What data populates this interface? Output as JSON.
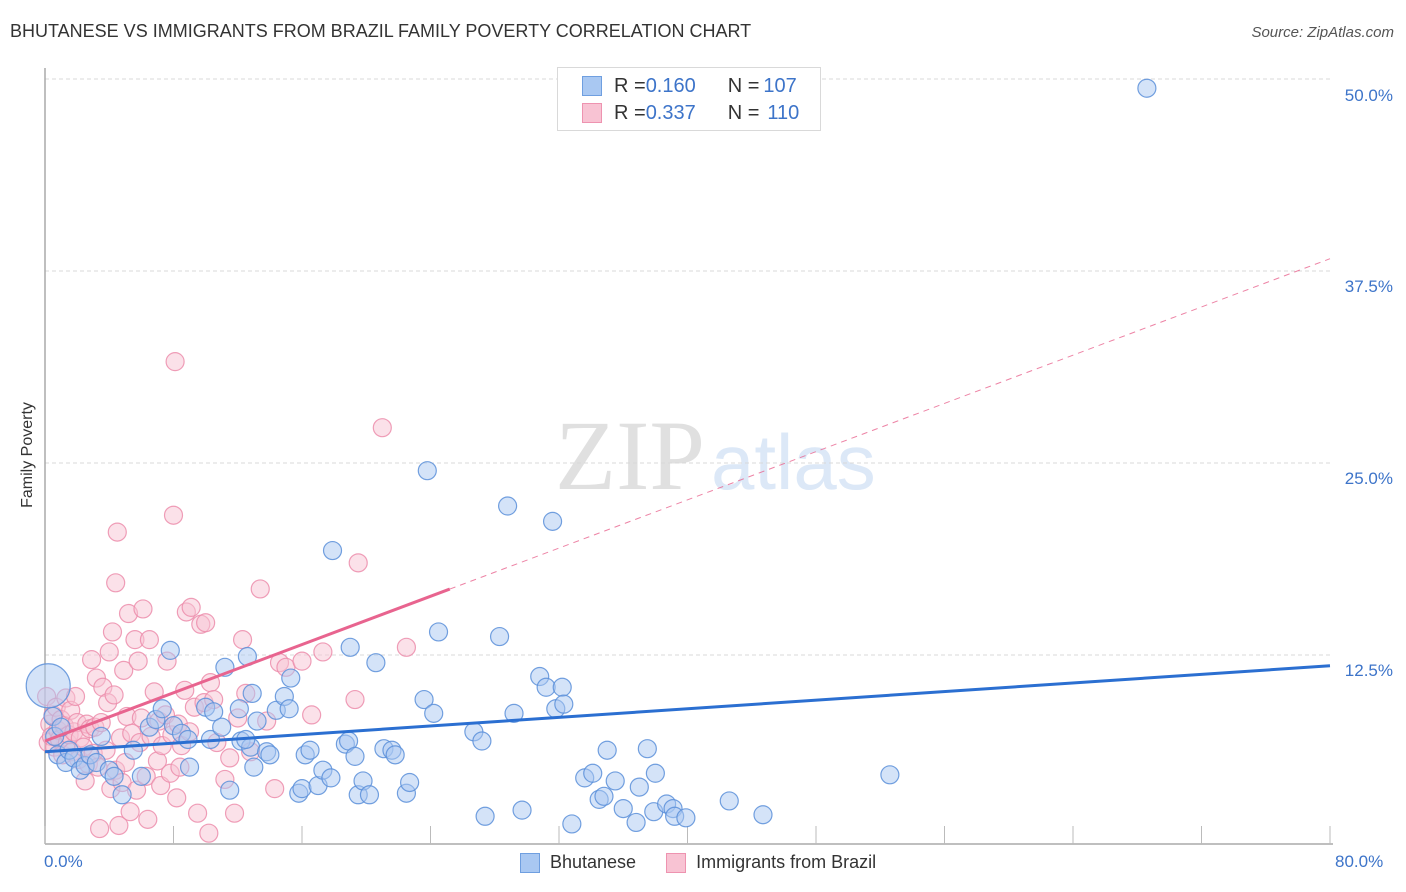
{
  "header": {
    "title": "BHUTANESE VS IMMIGRANTS FROM BRAZIL FAMILY POVERTY CORRELATION CHART",
    "source": "Source: ZipAtlas.com"
  },
  "watermark": {
    "zip": "ZIP",
    "atlas": "atlas"
  },
  "legend": {
    "rows": [
      {
        "r_label": "R = ",
        "r_value": "0.160",
        "n_label": "N = ",
        "n_value": "107",
        "color": "#a9c8f2",
        "border": "#6f9fe0"
      },
      {
        "r_label": "R = ",
        "r_value": "0.337",
        "n_label": "N = ",
        "n_value": "110",
        "color": "#f8c3d3",
        "border": "#ee93b0"
      }
    ]
  },
  "bottom_legend": [
    {
      "label": "Bhutanese",
      "color": "#a9c8f2",
      "border": "#6f9fe0"
    },
    {
      "label": "Immigrants from Brazil",
      "color": "#f8c3d3",
      "border": "#ee93b0"
    }
  ],
  "axes": {
    "y_label": "Family Poverty",
    "y_ticks": [
      "50.0%",
      "37.5%",
      "25.0%",
      "12.5%"
    ],
    "x_min_label": "0.0%",
    "x_max_label": "80.0%"
  },
  "colors": {
    "blue_fill": "#a9c8f2",
    "blue_stroke": "#5b8fd9",
    "blue_line": "#2b6fd1",
    "pink_fill": "#f8c3d3",
    "pink_stroke": "#ec8dab",
    "pink_line": "#e8648f",
    "grid": "#d9d9d9",
    "tick_text": "#3d74c9"
  },
  "chart_data": {
    "type": "scatter",
    "title": "BHUTANESE VS IMMIGRANTS FROM BRAZIL FAMILY POVERTY CORRELATION CHART",
    "xlabel": "",
    "ylabel": "Family Poverty",
    "xlim": [
      0,
      80
    ],
    "ylim": [
      0,
      50
    ],
    "x_ticks": [
      0,
      8,
      16,
      24,
      32,
      40,
      48,
      56,
      64,
      72,
      80
    ],
    "y_ticks": [
      12.5,
      25.0,
      37.5,
      50.0
    ],
    "grid": true,
    "legend_position": "top-center",
    "series": [
      {
        "name": "Bhutanese",
        "R": 0.16,
        "N": 107,
        "trend": {
          "x": [
            0,
            80
          ],
          "y": [
            6.2,
            11.8
          ],
          "style": "solid"
        },
        "points": [
          [
            0.2,
            10.5
          ],
          [
            0.5,
            8.5
          ],
          [
            0.6,
            7.2
          ],
          [
            0.8,
            6.0
          ],
          [
            1.0,
            7.8
          ],
          [
            1.3,
            5.5
          ],
          [
            1.5,
            6.3
          ],
          [
            1.8,
            5.8
          ],
          [
            2.2,
            5.0
          ],
          [
            2.5,
            5.3
          ],
          [
            2.8,
            6.0
          ],
          [
            3.2,
            5.5
          ],
          [
            3.5,
            7.2
          ],
          [
            4.0,
            5.0
          ],
          [
            4.3,
            4.6
          ],
          [
            4.8,
            3.4
          ],
          [
            5.5,
            6.3
          ],
          [
            6.0,
            4.6
          ],
          [
            6.5,
            7.8
          ],
          [
            6.9,
            8.3
          ],
          [
            7.3,
            9.0
          ],
          [
            7.8,
            12.8
          ],
          [
            8.0,
            7.9
          ],
          [
            8.5,
            7.4
          ],
          [
            8.9,
            7.0
          ],
          [
            9.0,
            5.2
          ],
          [
            10.0,
            9.1
          ],
          [
            10.3,
            7.0
          ],
          [
            10.5,
            8.8
          ],
          [
            11.0,
            7.8
          ],
          [
            11.2,
            11.7
          ],
          [
            11.5,
            3.7
          ],
          [
            12.1,
            9.0
          ],
          [
            12.2,
            6.9
          ],
          [
            12.6,
            12.4
          ],
          [
            12.8,
            6.5
          ],
          [
            13.0,
            5.2
          ],
          [
            12.5,
            7.0
          ],
          [
            13.2,
            8.2
          ],
          [
            12.9,
            10.0
          ],
          [
            13.8,
            6.2
          ],
          [
            14.0,
            6.0
          ],
          [
            14.4,
            8.9
          ],
          [
            14.9,
            9.8
          ],
          [
            15.3,
            11.0
          ],
          [
            15.2,
            9.0
          ],
          [
            15.8,
            3.5
          ],
          [
            16.0,
            3.8
          ],
          [
            16.2,
            6.0
          ],
          [
            16.5,
            6.3
          ],
          [
            17.0,
            4.0
          ],
          [
            17.3,
            5.0
          ],
          [
            17.8,
            4.5
          ],
          [
            17.9,
            19.3
          ],
          [
            18.7,
            6.7
          ],
          [
            18.9,
            6.9
          ],
          [
            19.0,
            13.0
          ],
          [
            19.3,
            5.9
          ],
          [
            19.5,
            3.4
          ],
          [
            19.8,
            4.3
          ],
          [
            20.2,
            3.4
          ],
          [
            20.6,
            12.0
          ],
          [
            21.1,
            6.4
          ],
          [
            21.6,
            6.3
          ],
          [
            21.8,
            6.0
          ],
          [
            22.5,
            3.5
          ],
          [
            22.7,
            4.2
          ],
          [
            23.6,
            9.6
          ],
          [
            23.8,
            24.5
          ],
          [
            24.2,
            8.7
          ],
          [
            24.5,
            14.0
          ],
          [
            26.7,
            7.5
          ],
          [
            27.2,
            6.9
          ],
          [
            27.4,
            2.0
          ],
          [
            28.3,
            13.7
          ],
          [
            28.8,
            22.2
          ],
          [
            29.2,
            8.7
          ],
          [
            29.7,
            2.4
          ],
          [
            30.8,
            11.1
          ],
          [
            31.2,
            10.4
          ],
          [
            31.6,
            21.2
          ],
          [
            31.8,
            9.0
          ],
          [
            32.2,
            10.4
          ],
          [
            32.3,
            9.3
          ],
          [
            32.8,
            1.5
          ],
          [
            33.6,
            4.5
          ],
          [
            34.1,
            4.8
          ],
          [
            34.5,
            3.1
          ],
          [
            34.8,
            3.3
          ],
          [
            35.0,
            6.3
          ],
          [
            35.5,
            4.3
          ],
          [
            36.0,
            2.5
          ],
          [
            36.8,
            1.6
          ],
          [
            37.0,
            3.9
          ],
          [
            37.5,
            6.4
          ],
          [
            37.9,
            2.3
          ],
          [
            38.0,
            4.8
          ],
          [
            38.7,
            2.8
          ],
          [
            39.1,
            2.5
          ],
          [
            39.2,
            2.0
          ],
          [
            39.9,
            1.9
          ],
          [
            42.6,
            3.0
          ],
          [
            44.7,
            2.1
          ],
          [
            52.6,
            4.7
          ],
          [
            68.6,
            49.4
          ]
        ]
      },
      {
        "name": "Immigrants from Brazil",
        "R": 0.337,
        "N": 110,
        "trend": {
          "x": [
            0,
            80
          ],
          "y": [
            6.9,
            38.3
          ],
          "solid_until_x": 25.2,
          "style": "solid-then-dashed"
        },
        "points": [
          [
            0.1,
            9.8
          ],
          [
            0.2,
            6.8
          ],
          [
            0.3,
            8.0
          ],
          [
            0.4,
            7.2
          ],
          [
            0.5,
            8.6
          ],
          [
            0.6,
            6.5
          ],
          [
            0.7,
            9.1
          ],
          [
            0.8,
            7.6
          ],
          [
            0.9,
            7.0
          ],
          [
            1.0,
            8.3
          ],
          [
            1.1,
            6.0
          ],
          [
            1.2,
            7.9
          ],
          [
            1.3,
            9.7
          ],
          [
            1.4,
            6.8
          ],
          [
            1.5,
            7.3
          ],
          [
            1.6,
            8.9
          ],
          [
            1.7,
            6.2
          ],
          [
            1.8,
            7.5
          ],
          [
            1.9,
            9.8
          ],
          [
            2.0,
            8.1
          ],
          [
            2.1,
            5.7
          ],
          [
            2.2,
            7.1
          ],
          [
            2.4,
            6.5
          ],
          [
            2.5,
            4.3
          ],
          [
            2.6,
            8.0
          ],
          [
            2.7,
            5.4
          ],
          [
            2.8,
            7.7
          ],
          [
            2.9,
            12.2
          ],
          [
            3.0,
            6.1
          ],
          [
            3.1,
            7.8
          ],
          [
            3.2,
            11.0
          ],
          [
            3.3,
            5.2
          ],
          [
            3.4,
            1.2
          ],
          [
            3.5,
            8.1
          ],
          [
            3.6,
            10.4
          ],
          [
            3.8,
            6.3
          ],
          [
            3.9,
            9.4
          ],
          [
            4.0,
            12.7
          ],
          [
            4.1,
            3.8
          ],
          [
            4.2,
            14.0
          ],
          [
            4.3,
            9.9
          ],
          [
            4.4,
            5.0
          ],
          [
            4.4,
            17.2
          ],
          [
            4.5,
            20.5
          ],
          [
            4.6,
            1.4
          ],
          [
            4.7,
            7.1
          ],
          [
            4.8,
            4.2
          ],
          [
            4.9,
            11.5
          ],
          [
            5.0,
            5.5
          ],
          [
            5.1,
            8.5
          ],
          [
            5.2,
            15.2
          ],
          [
            5.3,
            2.3
          ],
          [
            5.4,
            7.4
          ],
          [
            5.6,
            13.5
          ],
          [
            5.7,
            3.7
          ],
          [
            5.8,
            12.1
          ],
          [
            5.9,
            6.8
          ],
          [
            6.0,
            8.4
          ],
          [
            6.1,
            15.5
          ],
          [
            6.3,
            4.6
          ],
          [
            6.4,
            1.8
          ],
          [
            6.5,
            13.5
          ],
          [
            6.6,
            7.2
          ],
          [
            6.8,
            10.1
          ],
          [
            7.0,
            5.6
          ],
          [
            7.1,
            8.2
          ],
          [
            7.2,
            4.0
          ],
          [
            7.3,
            6.6
          ],
          [
            7.5,
            8.6
          ],
          [
            7.6,
            12.1
          ],
          [
            7.8,
            4.8
          ],
          [
            7.9,
            7.3
          ],
          [
            8.0,
            21.6
          ],
          [
            8.1,
            31.6
          ],
          [
            8.2,
            3.2
          ],
          [
            8.3,
            8.0
          ],
          [
            8.4,
            5.2
          ],
          [
            8.5,
            6.6
          ],
          [
            8.7,
            10.2
          ],
          [
            8.8,
            15.3
          ],
          [
            9.0,
            7.5
          ],
          [
            9.1,
            15.6
          ],
          [
            9.3,
            9.1
          ],
          [
            9.5,
            2.2
          ],
          [
            9.7,
            14.5
          ],
          [
            9.9,
            9.4
          ],
          [
            10.0,
            14.6
          ],
          [
            10.2,
            0.9
          ],
          [
            10.3,
            10.7
          ],
          [
            10.5,
            9.6
          ],
          [
            10.7,
            6.8
          ],
          [
            11.2,
            4.4
          ],
          [
            11.5,
            5.8
          ],
          [
            11.8,
            2.2
          ],
          [
            12.0,
            8.4
          ],
          [
            12.3,
            13.5
          ],
          [
            12.5,
            10.0
          ],
          [
            12.8,
            6.2
          ],
          [
            13.4,
            16.8
          ],
          [
            13.8,
            8.2
          ],
          [
            14.3,
            3.8
          ],
          [
            14.6,
            12.0
          ],
          [
            15.0,
            11.7
          ],
          [
            16.0,
            12.1
          ],
          [
            16.6,
            8.6
          ],
          [
            17.3,
            12.7
          ],
          [
            19.3,
            9.6
          ],
          [
            19.5,
            18.5
          ],
          [
            21.0,
            27.3
          ],
          [
            22.5,
            13.0
          ]
        ]
      }
    ]
  }
}
